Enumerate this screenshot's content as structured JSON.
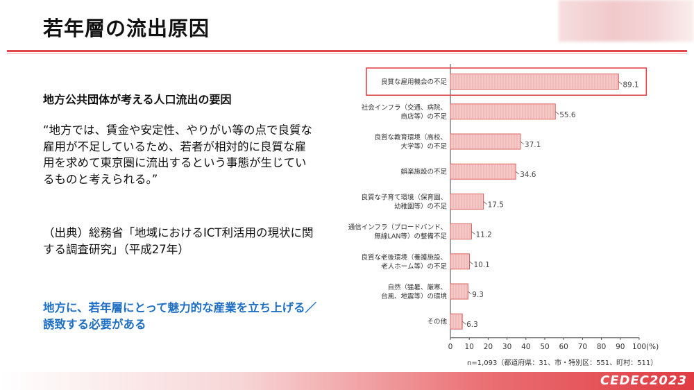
{
  "slide": {
    "title": "若年層の流出原因",
    "subhead": "地方公共団体が考える人口流出の要因",
    "quote": "“地方では、賃金や安定性、やりがい等の点で良質な雇用が不足しているため、若者が相対的に良質な雇用を求めて東京圏に流出するという事態が生じているものと考えられる。”",
    "source": "（出典）総務省「地域におけるICT利活用の現状に関する調査研究」（平成27年）",
    "conclusion": "地方に、若年層にとって魅力的な産業を立ち上げる／誘致する必要がある",
    "logo": "CEDEC2023",
    "colors": {
      "accent_red": "#e0474c",
      "bar_fill": "#f6c9c9",
      "bar_stroke": "#d9625f",
      "conclusion_blue": "#1f6fc4"
    }
  },
  "chart_data": {
    "type": "bar",
    "orientation": "horizontal",
    "categories": [
      [
        "良質な雇用機会の不足"
      ],
      [
        "社会インフラ（交通、病院、",
        "商店等）の不足"
      ],
      [
        "良質な教育環境（高校、",
        "大学等）の不足"
      ],
      [
        "娯楽施設の不足"
      ],
      [
        "良質な子育て環境（保育園、",
        "幼稚園等）の不足"
      ],
      [
        "通信インフラ（ブロードバンド、",
        "無線LAN等）の整備不足"
      ],
      [
        "良質な老後環境（養護施設、",
        "老人ホーム等）の不足"
      ],
      [
        "自然（猛暑、厳寒、",
        "台風、地震等）の環境"
      ],
      [
        "その他"
      ]
    ],
    "values": [
      89.1,
      55.6,
      37.1,
      34.6,
      17.5,
      11.2,
      10.1,
      9.3,
      6.3
    ],
    "value_labels": [
      "89.1",
      "55.6",
      "37.1",
      "34.6",
      "17.5",
      "11.2",
      "10.1",
      "9.3",
      "6.3"
    ],
    "xlim": [
      0,
      100
    ],
    "x_ticks": [
      "0",
      "10",
      "20",
      "30",
      "40",
      "50",
      "60",
      "70",
      "80",
      "90",
      "100"
    ],
    "x_unit": "(%)",
    "note": "n=1,093（都道府県：31、市・特別区：551、町村：511）",
    "highlighted_index": 0,
    "grid": false
  }
}
